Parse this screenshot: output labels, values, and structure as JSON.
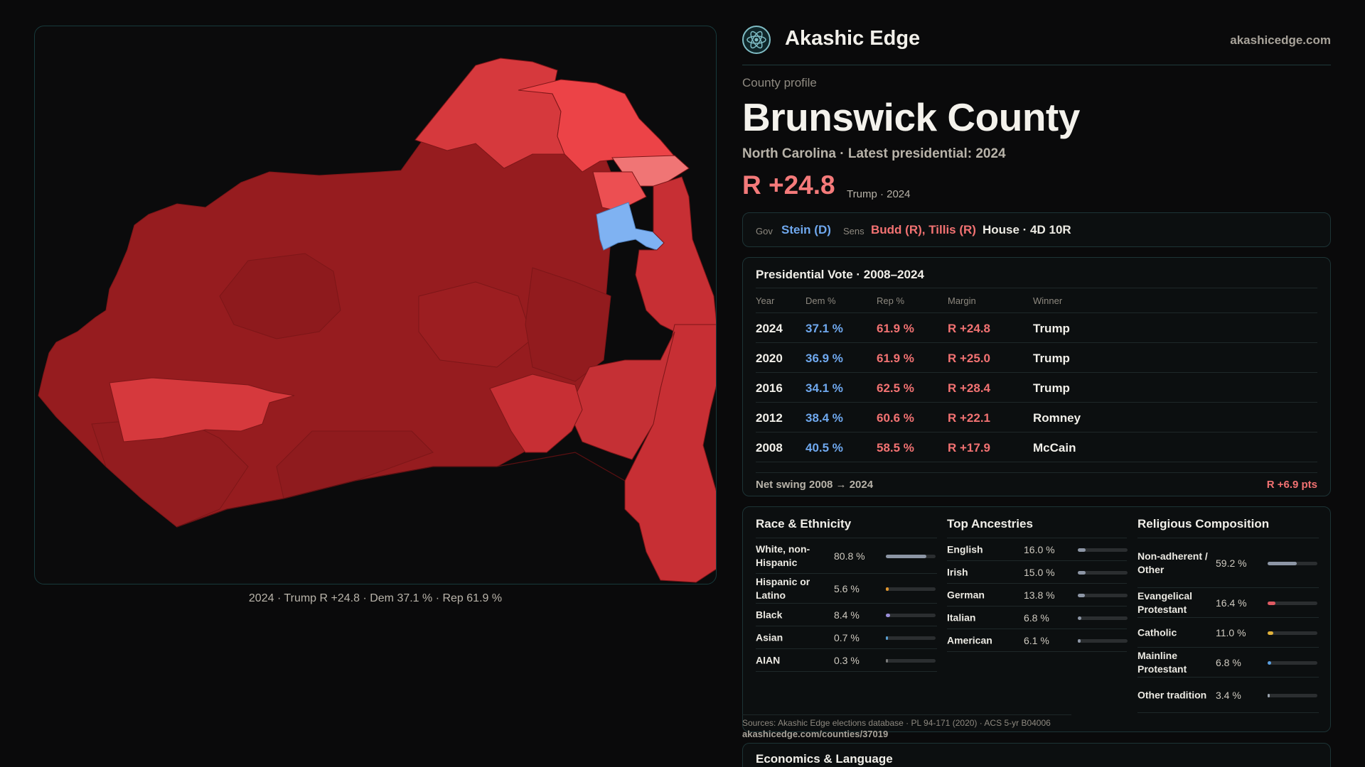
{
  "map": {
    "caption": "2024 · Trump R +24.8 · Dem 37.1 % · Rep 61.9 %",
    "colors": {
      "dark_red": "#961c1f",
      "red": "#c72f34",
      "mid_red": "#d6393d",
      "bright_red": "#ec4347",
      "light_red": "#f07575",
      "blue": "#7fb2f2"
    }
  },
  "brand": {
    "name": "Akashic Edge",
    "domain": "akashicedge.com",
    "logo_icon": "atom-logo-icon"
  },
  "header": {
    "kicker": "County profile",
    "title": "Brunswick County",
    "subtitle": "North Carolina · Latest presidential: 2024",
    "margin": "R +24.8",
    "margin_note": "Trump · 2024"
  },
  "officials": {
    "gov_label": "Gov",
    "gov_value": "Stein (D)",
    "sens_label": "Sens",
    "sens_value": "Budd (R), Tillis (R)",
    "house": "House · 4D 10R"
  },
  "presidential": {
    "title": "Presidential Vote · 2008–2024",
    "headers": {
      "year": "Year",
      "dem": "Dem %",
      "rep": "Rep %",
      "margin": "Margin",
      "winner": "Winner"
    },
    "rows": [
      {
        "year": "2024",
        "dem": "37.1 %",
        "rep": "61.9 %",
        "margin": "R +24.8",
        "winner": "Trump"
      },
      {
        "year": "2020",
        "dem": "36.9 %",
        "rep": "61.9 %",
        "margin": "R +25.0",
        "winner": "Trump"
      },
      {
        "year": "2016",
        "dem": "34.1 %",
        "rep": "62.5 %",
        "margin": "R +28.4",
        "winner": "Trump"
      },
      {
        "year": "2012",
        "dem": "38.4 %",
        "rep": "60.6 %",
        "margin": "R +22.1",
        "winner": "Romney"
      },
      {
        "year": "2008",
        "dem": "40.5 %",
        "rep": "58.5 %",
        "margin": "R +17.9",
        "winner": "McCain"
      }
    ],
    "swing_label": "Net swing 2008 → 2024",
    "swing_value": "R +6.9 pts"
  },
  "race": {
    "title": "Race & Ethnicity",
    "items": [
      {
        "label": "White, non-Hispanic",
        "value": "80.8 %",
        "pct": 80.8,
        "color": "#8d96a5"
      },
      {
        "label": "Hispanic or Latino",
        "value": "5.6 %",
        "pct": 5.6,
        "color": "#e0962f"
      },
      {
        "label": "Black",
        "value": "8.4 %",
        "pct": 8.4,
        "color": "#9a8ed8"
      },
      {
        "label": "Asian",
        "value": "0.7 %",
        "pct": 0.7,
        "color": "#5a9fd0"
      },
      {
        "label": "AIAN",
        "value": "0.3 %",
        "pct": 0.3,
        "color": "#7a7a7a"
      }
    ]
  },
  "ancestry": {
    "title": "Top Ancestries",
    "items": [
      {
        "label": "English",
        "value": "16.0 %",
        "pct": 16.0,
        "color": "#8d96a5"
      },
      {
        "label": "Irish",
        "value": "15.0 %",
        "pct": 15.0,
        "color": "#8d96a5"
      },
      {
        "label": "German",
        "value": "13.8 %",
        "pct": 13.8,
        "color": "#8d96a5"
      },
      {
        "label": "Italian",
        "value": "6.8 %",
        "pct": 6.8,
        "color": "#8d96a5"
      },
      {
        "label": "American",
        "value": "6.1 %",
        "pct": 6.1,
        "color": "#8d96a5"
      }
    ]
  },
  "religion": {
    "title": "Religious Composition",
    "items": [
      {
        "label": "Non-adherent / Other",
        "value": "59.2 %",
        "pct": 59.2,
        "color": "#8d96a5"
      },
      {
        "label": "Evangelical Protestant",
        "value": "16.4 %",
        "pct": 16.4,
        "color": "#e05a62"
      },
      {
        "label": "Catholic",
        "value": "11.0 %",
        "pct": 11.0,
        "color": "#e0b13a"
      },
      {
        "label": "Mainline Protestant",
        "value": "6.8 %",
        "pct": 6.8,
        "color": "#5a9fe0"
      },
      {
        "label": "Other tradition",
        "value": "3.4 %",
        "pct": 3.4,
        "color": "#9aa2ad"
      }
    ]
  },
  "sources": "Sources: Akashic Edge elections database · PL 94-171 (2020) · ACS 5-yr B04006",
  "sources_url": "akashicedge.com/counties/37019",
  "economics": {
    "title": "Economics & Language"
  }
}
